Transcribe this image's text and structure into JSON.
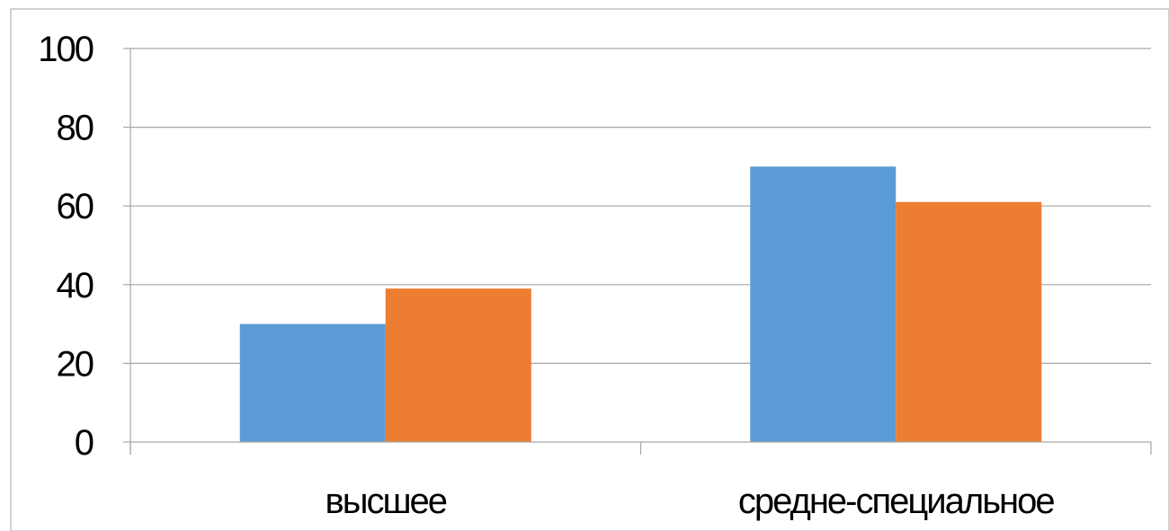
{
  "chart_data": {
    "type": "bar",
    "categories": [
      "высшее",
      "средне-специальное"
    ],
    "series": [
      {
        "values": [
          30,
          70
        ],
        "color": "#5b9bd5"
      },
      {
        "values": [
          39,
          61
        ],
        "color": "#ed7d31"
      }
    ],
    "title": "",
    "xlabel": "",
    "ylabel": "",
    "ylim": [
      0,
      100
    ],
    "yticks": [
      0,
      20,
      40,
      60,
      80,
      100
    ],
    "grid": true,
    "legend": "none"
  },
  "colors": {
    "gridline": "#a6a6a6",
    "frame": "#a6a6a6"
  }
}
